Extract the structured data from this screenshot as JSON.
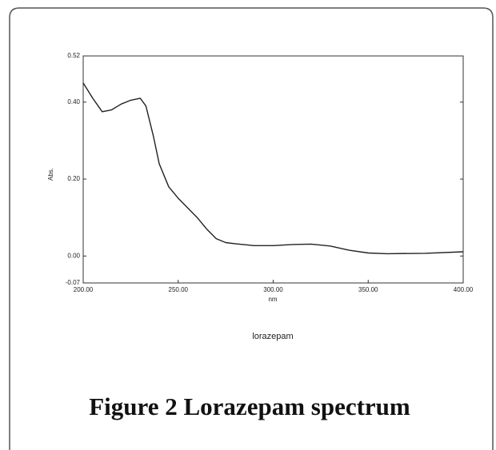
{
  "chart_data": {
    "type": "line",
    "y_label": "Abs.",
    "x_label": "nm",
    "subtitle": "lorazepam",
    "caption": "Figure 2 Lorazepam spectrum",
    "x": [
      200,
      205,
      210,
      215,
      220,
      225,
      230,
      233,
      237,
      240,
      245,
      250,
      255,
      260,
      265,
      270,
      275,
      280,
      290,
      300,
      310,
      320,
      330,
      340,
      350,
      360,
      380,
      400
    ],
    "values": [
      0.45,
      0.41,
      0.375,
      0.38,
      0.395,
      0.405,
      0.41,
      0.39,
      0.31,
      0.24,
      0.18,
      0.15,
      0.125,
      0.1,
      0.07,
      0.045,
      0.035,
      0.032,
      0.027,
      0.027,
      0.03,
      0.031,
      0.026,
      0.015,
      0.008,
      0.006,
      0.007,
      0.011
    ],
    "color": "#222222",
    "xlim": [
      200,
      400
    ],
    "xticks": [
      {
        "value": 200,
        "label": "200.00"
      },
      {
        "value": 250,
        "label": "250.00"
      },
      {
        "value": 300,
        "label": "300.00"
      },
      {
        "value": 350,
        "label": "350.00"
      },
      {
        "value": 400,
        "label": "400.00"
      }
    ],
    "ylim": [
      -0.07,
      0.52
    ],
    "yticks": [
      {
        "value": -0.07,
        "label": "-0.07"
      },
      {
        "value": 0,
        "label": "0.00"
      },
      {
        "value": 0.2,
        "label": "0.20"
      },
      {
        "value": 0.4,
        "label": "0.40"
      },
      {
        "value": 0.52,
        "label": "0.52"
      }
    ]
  }
}
